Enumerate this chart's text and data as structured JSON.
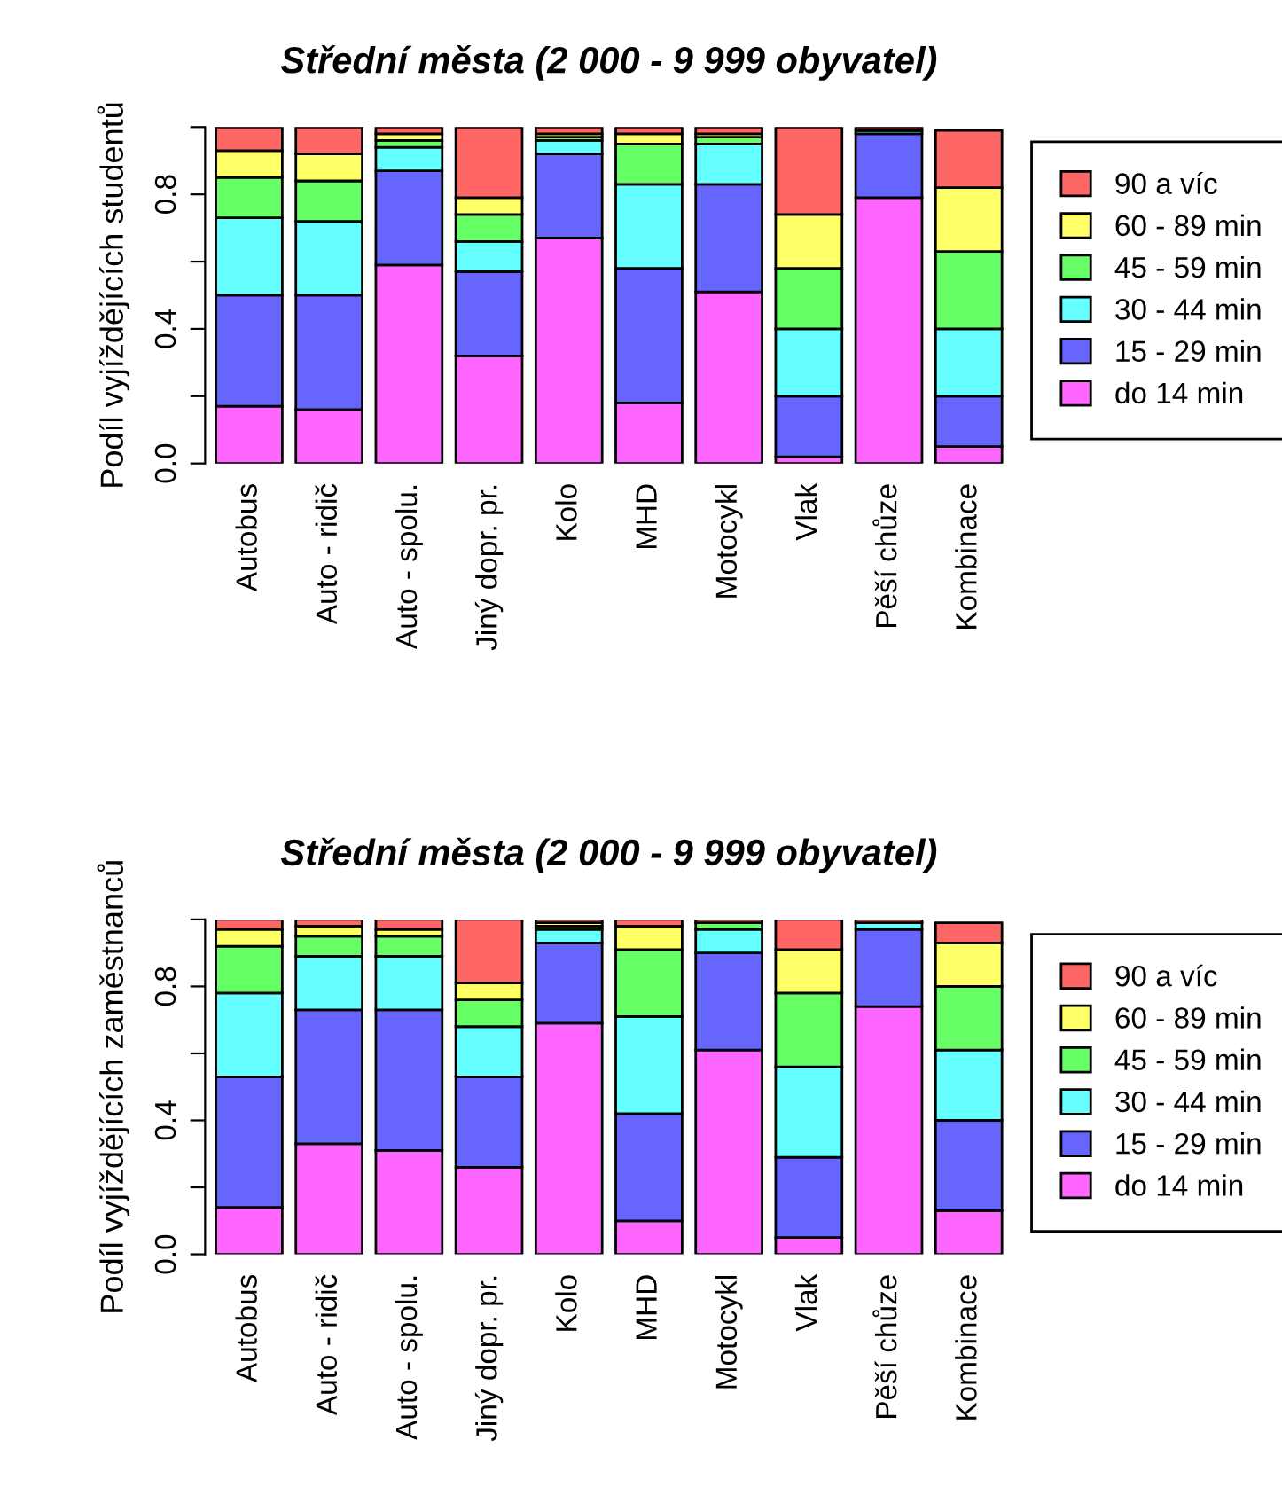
{
  "chart_data": [
    {
      "type": "bar",
      "stacked": true,
      "title": "Střední města (2 000 - 9 999 obyvatel)",
      "ylabel": "Podíl vyjíždějících studentů",
      "categories": [
        "Autobus",
        "Auto - ridič",
        "Auto - spolu.",
        "Jiný dopr. pr.",
        "Kolo",
        "MHD",
        "Motocykl",
        "Vlak",
        "Pěší chůze",
        "Kombinace"
      ],
      "ylim": [
        0,
        1
      ],
      "yticks": [
        {
          "value": 0,
          "label": "0.0"
        },
        {
          "value": 0.2,
          "label": null
        },
        {
          "value": 0.4,
          "label": "0.4"
        },
        {
          "value": 0.6,
          "label": null
        },
        {
          "value": 0.8,
          "label": "0.8"
        },
        {
          "value": 1.0,
          "label": null
        }
      ],
      "legend": "right",
      "grid": false,
      "series": [
        {
          "name": "do 14 min",
          "color": "#ff66ff",
          "values": [
            0.17,
            0.16,
            0.59,
            0.32,
            0.67,
            0.18,
            0.51,
            0.02,
            0.79,
            0.05
          ]
        },
        {
          "name": "15 - 29 min",
          "color": "#6666ff",
          "values": [
            0.33,
            0.34,
            0.28,
            0.25,
            0.25,
            0.4,
            0.32,
            0.18,
            0.19,
            0.15
          ]
        },
        {
          "name": "30 - 44 min",
          "color": "#66ffff",
          "values": [
            0.23,
            0.22,
            0.07,
            0.09,
            0.04,
            0.25,
            0.12,
            0.2,
            0.01,
            0.2
          ]
        },
        {
          "name": "45 - 59 min",
          "color": "#66ff66",
          "values": [
            0.12,
            0.12,
            0.02,
            0.08,
            0.01,
            0.12,
            0.02,
            0.18,
            0.0,
            0.23
          ]
        },
        {
          "name": "60 - 89 min",
          "color": "#ffff66",
          "values": [
            0.08,
            0.08,
            0.02,
            0.05,
            0.01,
            0.03,
            0.01,
            0.16,
            0.0,
            0.19
          ]
        },
        {
          "name": "90 a víc",
          "color": "#ff6666",
          "values": [
            0.07,
            0.08,
            0.02,
            0.21,
            0.02,
            0.02,
            0.02,
            0.26,
            0.01,
            0.17
          ]
        }
      ]
    },
    {
      "type": "bar",
      "stacked": true,
      "title": "Střední města (2 000 - 9 999 obyvatel)",
      "ylabel": "Podíl vyjíždějících zaměstnanců",
      "categories": [
        "Autobus",
        "Auto - ridič",
        "Auto - spolu.",
        "Jiný dopr. pr.",
        "Kolo",
        "MHD",
        "Motocykl",
        "Vlak",
        "Pěší chůze",
        "Kombinace"
      ],
      "ylim": [
        0,
        1
      ],
      "yticks": [
        {
          "value": 0,
          "label": "0.0"
        },
        {
          "value": 0.2,
          "label": null
        },
        {
          "value": 0.4,
          "label": "0.4"
        },
        {
          "value": 0.6,
          "label": null
        },
        {
          "value": 0.8,
          "label": "0.8"
        },
        {
          "value": 1.0,
          "label": null
        }
      ],
      "legend": "right",
      "grid": false,
      "series": [
        {
          "name": "do 14 min",
          "color": "#ff66ff",
          "values": [
            0.14,
            0.33,
            0.31,
            0.26,
            0.69,
            0.1,
            0.61,
            0.05,
            0.74,
            0.13
          ]
        },
        {
          "name": "15 - 29 min",
          "color": "#6666ff",
          "values": [
            0.39,
            0.4,
            0.42,
            0.27,
            0.24,
            0.32,
            0.29,
            0.24,
            0.23,
            0.27
          ]
        },
        {
          "name": "30 - 44 min",
          "color": "#66ffff",
          "values": [
            0.25,
            0.16,
            0.16,
            0.15,
            0.04,
            0.29,
            0.07,
            0.27,
            0.02,
            0.21
          ]
        },
        {
          "name": "45 - 59 min",
          "color": "#66ff66",
          "values": [
            0.14,
            0.06,
            0.06,
            0.08,
            0.01,
            0.2,
            0.02,
            0.22,
            0.0,
            0.19
          ]
        },
        {
          "name": "60 - 89 min",
          "color": "#ffff66",
          "values": [
            0.05,
            0.03,
            0.02,
            0.05,
            0.01,
            0.07,
            0.0,
            0.13,
            0.0,
            0.13
          ]
        },
        {
          "name": "90 a víc",
          "color": "#ff6666",
          "values": [
            0.03,
            0.02,
            0.03,
            0.19,
            0.01,
            0.02,
            0.01,
            0.09,
            0.01,
            0.06
          ]
        }
      ]
    }
  ]
}
